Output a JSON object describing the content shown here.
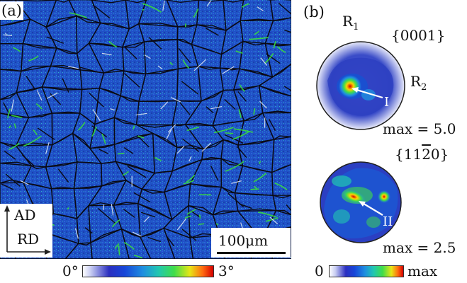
{
  "panel_a": {
    "label": "(a)",
    "axes": {
      "vertical": "AD",
      "horizontal": "RD"
    },
    "scale_bar": "100μm",
    "colorbar": {
      "min_label": "0°",
      "max_label": "3°"
    }
  },
  "panel_b": {
    "label": "(b)",
    "reference": {
      "r1": "R",
      "r1_sub": "1",
      "r2": "R",
      "r2_sub": "2"
    },
    "pole_figures": [
      {
        "family": "{0001}",
        "marker": "I",
        "max": "max = 5.0"
      },
      {
        "family_prefix": "{11",
        "family_bar": "2",
        "family_suffix": "0}",
        "marker": "II",
        "max": "max = 2.5"
      }
    ],
    "colorbar": {
      "min_label": "0",
      "max_label": "max"
    }
  },
  "colors": {
    "map_base": "#1e4fc8",
    "grain_boundary": "#0a0a14",
    "low_angle_boundary": "#39e03a",
    "twin_boundary": "#e8eef5"
  }
}
